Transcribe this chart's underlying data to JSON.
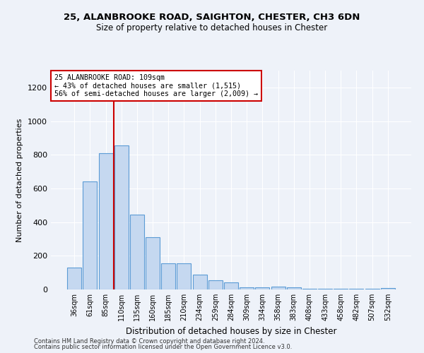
{
  "title_line1": "25, ALANBROOKE ROAD, SAIGHTON, CHESTER, CH3 6DN",
  "title_line2": "Size of property relative to detached houses in Chester",
  "xlabel": "Distribution of detached houses by size in Chester",
  "ylabel": "Number of detached properties",
  "categories": [
    "36sqm",
    "61sqm",
    "85sqm",
    "110sqm",
    "135sqm",
    "160sqm",
    "185sqm",
    "210sqm",
    "234sqm",
    "259sqm",
    "284sqm",
    "309sqm",
    "334sqm",
    "358sqm",
    "383sqm",
    "408sqm",
    "433sqm",
    "458sqm",
    "482sqm",
    "507sqm",
    "532sqm"
  ],
  "values": [
    130,
    640,
    810,
    855,
    445,
    310,
    157,
    157,
    90,
    55,
    42,
    12,
    14,
    18,
    11,
    3,
    3,
    3,
    3,
    3,
    10
  ],
  "bar_color": "#c5d8f0",
  "bar_edge_color": "#5b9bd5",
  "vline_index": 3,
  "vline_color": "#cc0000",
  "annotation_text": "25 ALANBROOKE ROAD: 109sqm\n← 43% of detached houses are smaller (1,515)\n56% of semi-detached houses are larger (2,009) →",
  "annotation_box_color": "#ffffff",
  "annotation_box_edge_color": "#cc0000",
  "ylim": [
    0,
    1300
  ],
  "yticks": [
    0,
    200,
    400,
    600,
    800,
    1000,
    1200
  ],
  "footer_line1": "Contains HM Land Registry data © Crown copyright and database right 2024.",
  "footer_line2": "Contains public sector information licensed under the Open Government Licence v3.0.",
  "bg_color": "#eef2f9",
  "plot_bg_color": "#eef2f9"
}
